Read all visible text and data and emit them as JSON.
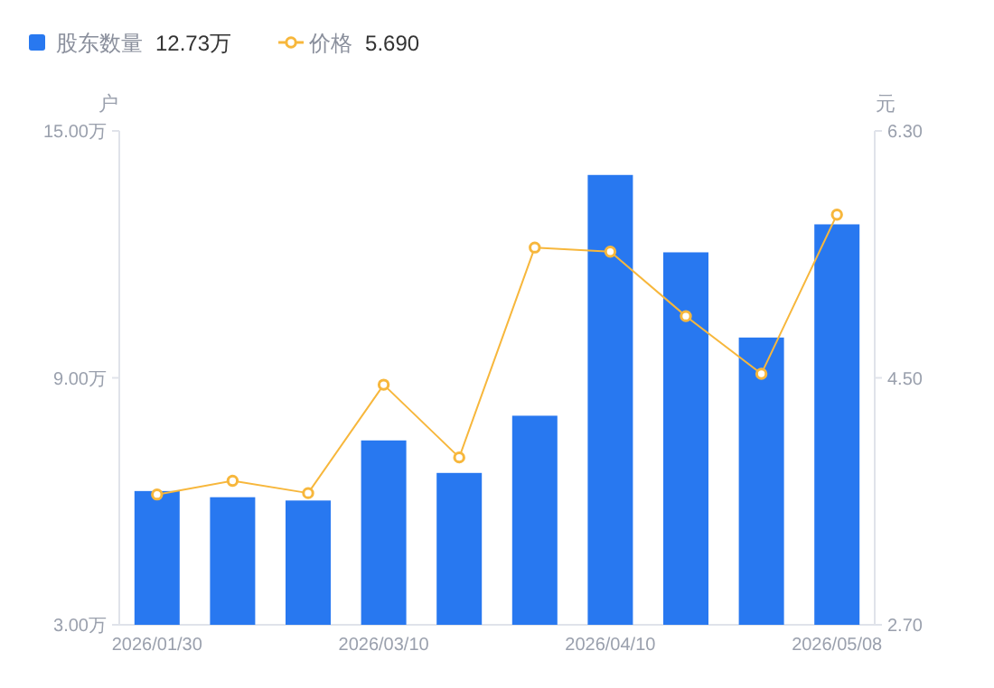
{
  "chart_data": {
    "type": "bar",
    "categories": [
      "2026/01/30",
      null,
      null,
      "2026/03/10",
      null,
      null,
      "2026/04/10",
      null,
      null,
      "2026/05/08"
    ],
    "series": [
      {
        "name": "股东数量",
        "color": "#2878f0",
        "values": [
          6.25,
          6.1,
          6.02,
          7.48,
          6.69,
          8.08,
          13.93,
          12.05,
          9.98,
          12.73
        ]
      },
      {
        "name": "价格",
        "type": "line",
        "axis": "y2",
        "color": "#f7b73c",
        "marker": "circle",
        "values": [
          3.65,
          3.75,
          3.66,
          4.45,
          3.92,
          5.45,
          5.42,
          4.95,
          4.53,
          5.69
        ]
      }
    ],
    "annotations": [
      "12.73万",
      "5.690"
    ],
    "ylabel": "户",
    "y2label": "元",
    "ylim": [
      3,
      15
    ],
    "yticks": [
      {
        "value": 3,
        "label": "3.00万"
      },
      {
        "value": 9,
        "label": "9.00万"
      },
      {
        "value": 15,
        "label": "15.00万"
      }
    ],
    "y2lim": [
      2.7,
      6.3
    ],
    "y2ticks": [
      {
        "value": 2.7,
        "label": "2.70"
      },
      {
        "value": 4.5,
        "label": "4.50"
      },
      {
        "value": 6.3,
        "label": "6.30"
      }
    ],
    "legend": "top left"
  }
}
